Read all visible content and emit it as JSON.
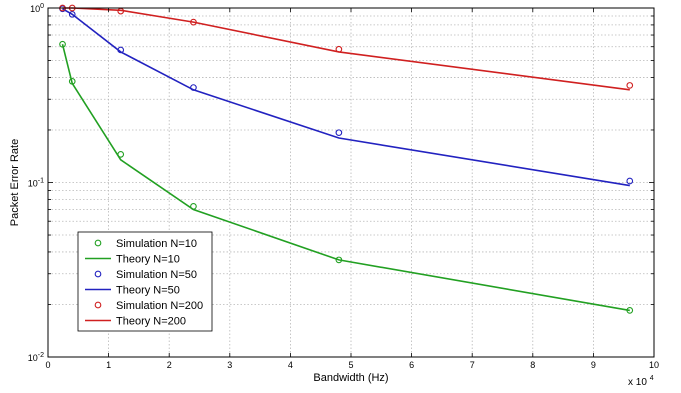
{
  "chart_data": {
    "type": "line",
    "title": "",
    "xlabel": "Bandwidth (Hz)",
    "ylabel": "Packet Error Rate",
    "x_multiplier_label": "x 10",
    "x_multiplier_exp": "4",
    "xlim": [
      0,
      10
    ],
    "ylim": [
      0.01,
      1
    ],
    "y_scale": "log",
    "grid": true,
    "legend_position": "bottom-left",
    "x_ticks": [
      "0",
      "1",
      "2",
      "3",
      "4",
      "5",
      "6",
      "7",
      "8",
      "9",
      "10"
    ],
    "y_ticks": [
      {
        "base": "10",
        "exp": "0",
        "value": 1
      },
      {
        "base": "10",
        "exp": "-1",
        "value": 0.1
      },
      {
        "base": "10",
        "exp": "-2",
        "value": 0.01
      }
    ],
    "x": [
      0.24,
      0.4,
      1.2,
      2.4,
      4.8,
      9.6
    ],
    "series": [
      {
        "name": "Simulation N=10",
        "kind": "markers",
        "color": "#22a022",
        "values": [
          0.62,
          0.38,
          0.145,
          0.073,
          0.036,
          0.0185
        ]
      },
      {
        "name": "Theory N=10",
        "kind": "line",
        "color": "#22a022",
        "values": [
          0.62,
          0.37,
          0.135,
          0.07,
          0.036,
          0.0185
        ]
      },
      {
        "name": "Simulation N=50",
        "kind": "markers",
        "color": "#2222c0",
        "values": [
          0.99,
          0.92,
          0.575,
          0.35,
          0.193,
          0.102
        ]
      },
      {
        "name": "Theory N=50",
        "kind": "line",
        "color": "#2222c0",
        "values": [
          0.99,
          0.92,
          0.56,
          0.34,
          0.18,
          0.096
        ]
      },
      {
        "name": "Simulation N=200",
        "kind": "markers",
        "color": "#d02020",
        "values": [
          1.0,
          1.0,
          0.96,
          0.83,
          0.58,
          0.36
        ]
      },
      {
        "name": "Theory N=200",
        "kind": "line",
        "color": "#d02020",
        "values": [
          1.0,
          1.0,
          0.97,
          0.83,
          0.56,
          0.34
        ]
      }
    ]
  }
}
